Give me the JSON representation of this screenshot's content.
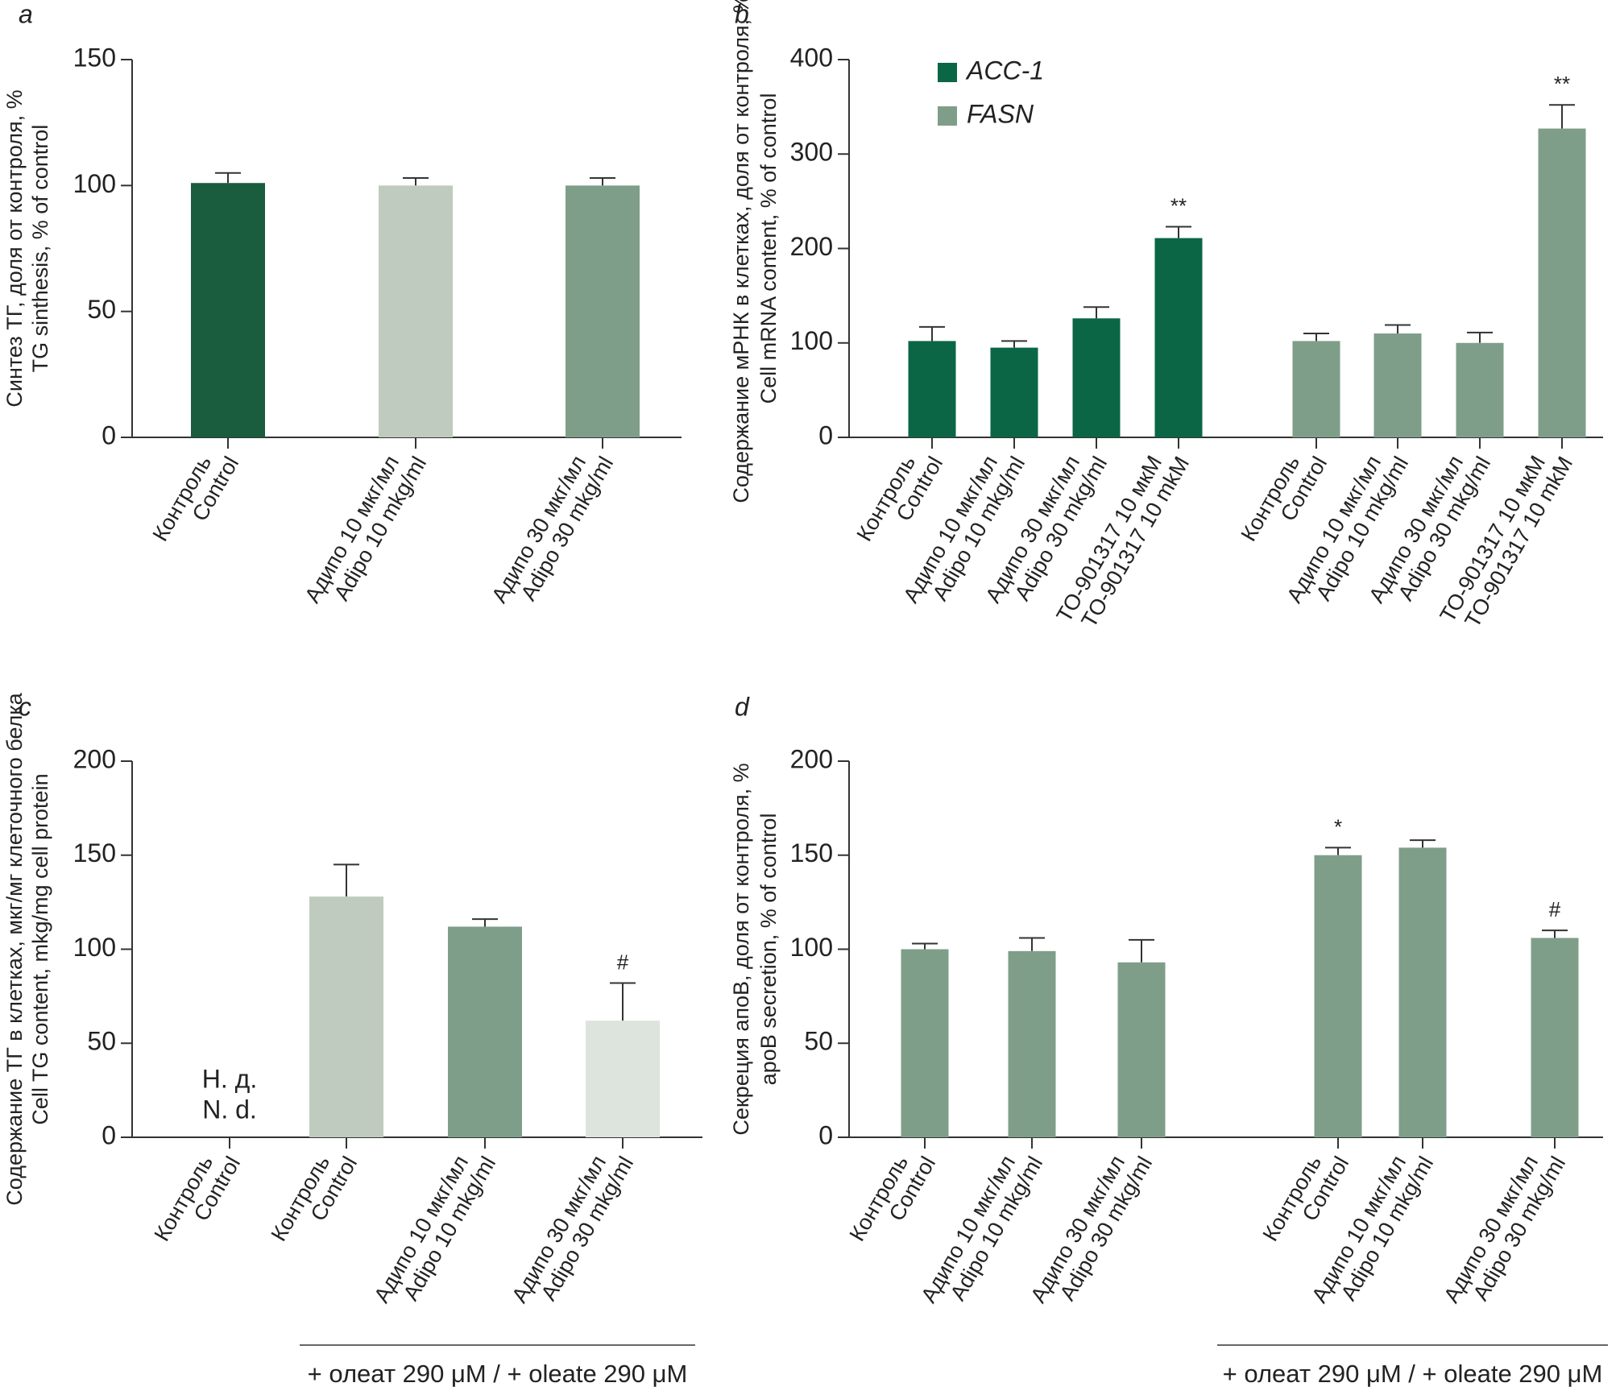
{
  "chart_data": [
    {
      "type": "bar",
      "panel": "a",
      "y_label": [
        "Синтез ТГ, доля от контроля, %",
        "TG sinthesis, % of control"
      ],
      "categories": [
        [
          "Контроль",
          "Control"
        ],
        [
          "Адипо 10 мкг/мл",
          "Adipo 10 mkg/ml"
        ],
        [
          "Адипо 30 мкг/мл",
          "Adipo 30 mkg/ml"
        ]
      ],
      "values": [
        101,
        100,
        100
      ],
      "errors": [
        4,
        3,
        3
      ],
      "colors": [
        "#1a5c3e",
        "#bfcbbf",
        "#7f9e89"
      ],
      "ylim": [
        0,
        150
      ],
      "yticks": [
        0,
        50,
        100,
        150
      ]
    },
    {
      "type": "bar",
      "panel": "b",
      "y_label": [
        "Содержание мРНК в клетках, доля от контроля, %",
        "Cell mRNA content, % of control"
      ],
      "categories": [
        [
          "Контроль",
          "Control"
        ],
        [
          "Адипо 10 мкг/мл",
          "Adipo 10 mkg/ml"
        ],
        [
          "Адипо 30 мкг/мл",
          "Adipo 30 mkg/ml"
        ],
        [
          "ТО-901317 10 мкМ",
          "TO-901317 10 mkM"
        ]
      ],
      "series": [
        {
          "name": "ACC-1",
          "color": "#0b6645",
          "values": [
            102,
            95,
            126,
            211
          ],
          "errors": [
            15,
            7,
            12,
            12
          ],
          "annotations": [
            null,
            null,
            null,
            "**"
          ]
        },
        {
          "name": "FASN",
          "color": "#7f9e89",
          "values": [
            102,
            110,
            100,
            327
          ],
          "errors": [
            8,
            9,
            11,
            25
          ],
          "annotations": [
            null,
            null,
            null,
            "**"
          ]
        }
      ],
      "ylim": [
        0,
        400
      ],
      "yticks": [
        0,
        100,
        200,
        300,
        400
      ]
    },
    {
      "type": "bar",
      "panel": "c",
      "y_label": [
        "Содержание ТГ в клетках, мкг/мг клеточного белка",
        "Cell TG content, mkg/mg cell protein"
      ],
      "categories": [
        [
          "Контроль",
          "Control"
        ],
        [
          "Контроль",
          "Control"
        ],
        [
          "Адипо 10 мкг/мл",
          "Adipo 10 mkg/ml"
        ],
        [
          "Адипо 30 мкг/мл",
          "Adipo 30 mkg/ml"
        ]
      ],
      "values": [
        null,
        128,
        112,
        62
      ],
      "errors": [
        null,
        17,
        4,
        20
      ],
      "colors": [
        null,
        "#bfcbbf",
        "#7f9e89",
        "#dde3dd"
      ],
      "annotations": [
        [
          "Н. д.",
          "N. d."
        ],
        null,
        null,
        "#"
      ],
      "group_label": "+ олеат 290 μM / + oleate 290 μM",
      "ylim": [
        0,
        200
      ],
      "yticks": [
        0,
        50,
        100,
        150,
        200
      ]
    },
    {
      "type": "bar",
      "panel": "d",
      "y_label": [
        "Секреция апоВ, доля от контроля, %",
        "apoB secretion, % of control"
      ],
      "categories": [
        [
          "Контроль",
          "Control"
        ],
        [
          "Адипо 10 мкг/мл",
          "Adipo 10 mkg/ml"
        ],
        [
          "Адипо 30 мкг/мл",
          "Adipo 30 mkg/ml"
        ],
        [
          "Контроль",
          "Control"
        ],
        [
          "Адипо 10 мкг/мл",
          "Adipo 10 mkg/ml"
        ],
        [
          "Адипо 30 мкг/мл",
          "Adipo 30 mkg/ml"
        ]
      ],
      "values": [
        100,
        99,
        93,
        150,
        154,
        106
      ],
      "errors": [
        3,
        7,
        12,
        4,
        4,
        4
      ],
      "color": "#7f9e89",
      "annotations": [
        null,
        null,
        null,
        "*",
        null,
        "#"
      ],
      "group_label": "+ олеат 290 μM / + oleate 290 μM",
      "ylim": [
        0,
        200
      ],
      "yticks": [
        0,
        50,
        100,
        150,
        200
      ]
    }
  ]
}
